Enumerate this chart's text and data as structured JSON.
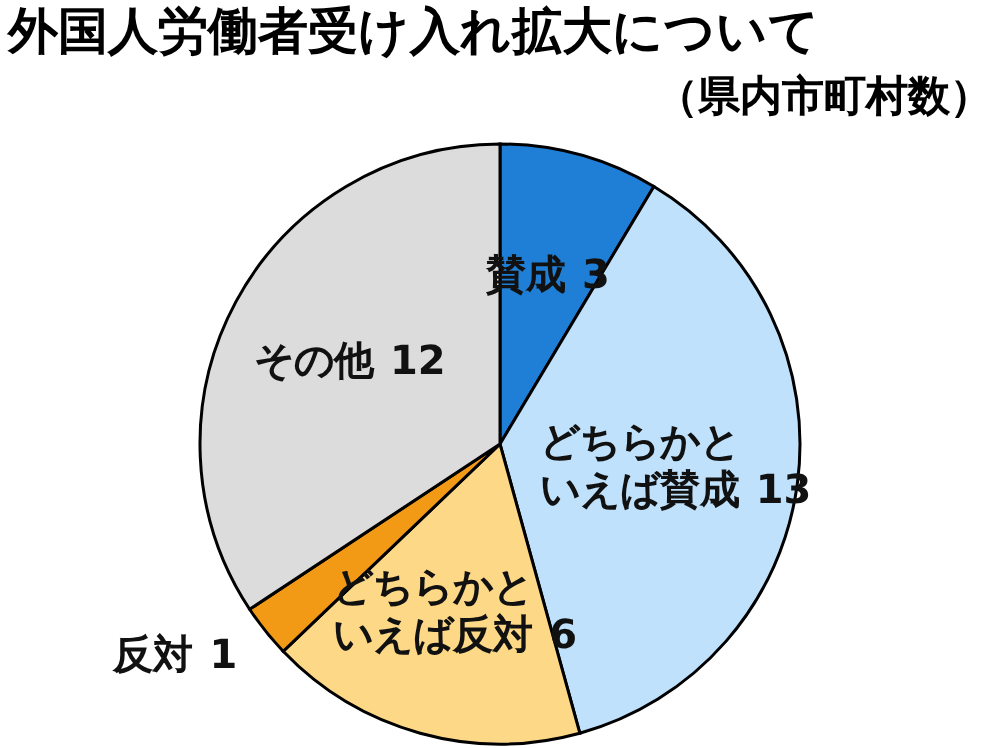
{
  "chart_data": {
    "type": "pie",
    "title": "外国人労働者受け入れ拡大について",
    "subtitle": "（県内市町村数）",
    "categories": [
      "賛成",
      "どちらかといえば賛成",
      "どちらかといえば反対",
      "反対",
      "その他"
    ],
    "values": [
      3,
      13,
      6,
      1,
      12
    ],
    "colors": [
      "#1f7fd6",
      "#bfe1fb",
      "#fdd887",
      "#f29a16",
      "#dcdcdc"
    ],
    "data_labels": true,
    "legend": false
  }
}
